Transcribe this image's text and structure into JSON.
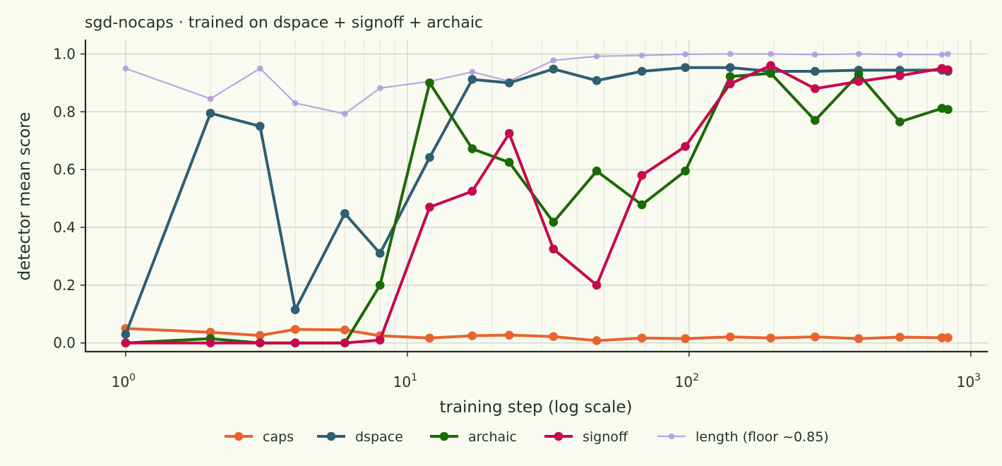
{
  "chart_data": {
    "type": "line",
    "title": "sgd-nocaps · trained on dspace + signoff + archaic",
    "xlabel": "training step (log scale)",
    "ylabel": "detector mean score",
    "xscale": "log",
    "xlim": [
      0.72,
      1150
    ],
    "ylim": [
      -0.03,
      1.05
    ],
    "x_ticks": [
      {
        "value": 1,
        "base": "10",
        "exp": "0"
      },
      {
        "value": 10,
        "base": "10",
        "exp": "1"
      },
      {
        "value": 100,
        "base": "10",
        "exp": "2"
      },
      {
        "value": 1000,
        "base": "10",
        "exp": "3"
      }
    ],
    "y_ticks": [
      "0.0",
      "0.2",
      "0.4",
      "0.6",
      "0.8",
      "1.0"
    ],
    "grid": true,
    "legend_position": "bottom-center",
    "x": [
      1,
      2,
      3,
      4,
      6,
      8,
      12,
      17,
      23,
      33,
      47,
      68,
      97,
      140,
      195,
      280,
      400,
      560,
      790,
      830
    ],
    "series": [
      {
        "name": "caps",
        "color": "#e8632e",
        "style": "bold",
        "values": [
          0.05,
          0.037,
          0.026,
          0.047,
          0.045,
          0.025,
          0.017,
          0.025,
          0.027,
          0.022,
          0.008,
          0.017,
          0.015,
          0.021,
          0.017,
          0.021,
          0.015,
          0.02,
          0.018,
          0.018
        ]
      },
      {
        "name": "dspace",
        "color": "#2e5f73",
        "style": "bold",
        "values": [
          0.03,
          0.795,
          0.75,
          0.115,
          0.448,
          0.31,
          0.642,
          0.912,
          0.9,
          0.948,
          0.908,
          0.94,
          0.953,
          0.953,
          0.94,
          0.94,
          0.944,
          0.944,
          0.944,
          0.94
        ]
      },
      {
        "name": "archaic",
        "color": "#1c6a06",
        "style": "bold",
        "values": [
          0.0,
          0.015,
          0.0,
          0.0,
          0.0,
          0.2,
          0.9,
          0.672,
          0.625,
          0.418,
          0.595,
          0.478,
          0.595,
          0.922,
          0.933,
          0.77,
          0.93,
          0.765,
          0.812,
          0.808
        ]
      },
      {
        "name": "signoff",
        "color": "#c7094f",
        "style": "bold",
        "values": [
          0.0,
          0.0,
          0.0,
          0.0,
          0.0,
          0.01,
          0.47,
          0.525,
          0.725,
          0.325,
          0.2,
          0.58,
          0.68,
          0.897,
          0.96,
          0.88,
          0.905,
          0.925,
          0.95,
          0.945
        ]
      },
      {
        "name": "length (floor ~0.85)",
        "color": "#ae98df",
        "style": "light",
        "values": [
          0.95,
          0.845,
          0.95,
          0.83,
          0.793,
          0.882,
          0.905,
          0.938,
          0.906,
          0.978,
          0.992,
          0.995,
          0.999,
          1.0,
          1.0,
          0.998,
          1.0,
          0.998,
          0.998,
          1.0
        ]
      }
    ]
  },
  "theme": {
    "background": "#f9fbf1",
    "text": "#1f3320",
    "axis": "#1f3320",
    "grid_major": "#cdd2c6",
    "grid_minor": "#e3e6dc"
  }
}
